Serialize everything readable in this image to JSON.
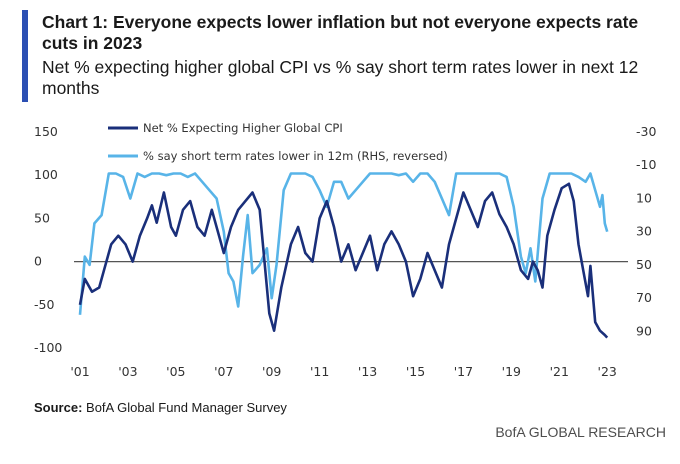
{
  "header": {
    "title": "Chart 1: Everyone expects lower inflation but not everyone expects rate cuts in 2023",
    "subtitle": "Net % expecting higher global CPI vs % say short term rates lower in next 12 months"
  },
  "footer": {
    "source_label": "Source:",
    "source_text": "BofA Global Fund Manager Survey",
    "brand": "BofA GLOBAL RESEARCH"
  },
  "colors": {
    "accent": "#2b4fb3",
    "series_dark": "#1a2f7a",
    "series_light": "#58b4e8",
    "zero_line": "#555555"
  },
  "chart_data": {
    "type": "line",
    "xlabel": "",
    "ylabel": "",
    "ylabel_right": "",
    "x_ticks": [
      "'01",
      "'03",
      "'05",
      "'07",
      "'09",
      "'11",
      "'13",
      "'15",
      "'17",
      "'19",
      "'21",
      "'23"
    ],
    "y_ticks_left": [
      150,
      100,
      50,
      0,
      -50,
      -100
    ],
    "y_ticks_right": [
      -30,
      -10,
      10,
      30,
      50,
      70,
      90
    ],
    "ylim_left": [
      -100,
      150
    ],
    "ylim_right_reversed": [
      -30,
      100
    ],
    "x_range": [
      2001.0,
      2023.2
    ],
    "legend_position": "top",
    "series": [
      {
        "name": "Net % Expecting Higher Global CPI",
        "axis": "left",
        "points": [
          [
            2001.0,
            -50
          ],
          [
            2001.2,
            -20
          ],
          [
            2001.5,
            -35
          ],
          [
            2001.8,
            -30
          ],
          [
            2002.0,
            -10
          ],
          [
            2002.3,
            20
          ],
          [
            2002.6,
            30
          ],
          [
            2002.9,
            20
          ],
          [
            2003.2,
            0
          ],
          [
            2003.5,
            30
          ],
          [
            2003.8,
            50
          ],
          [
            2004.0,
            65
          ],
          [
            2004.2,
            45
          ],
          [
            2004.5,
            80
          ],
          [
            2004.8,
            40
          ],
          [
            2005.0,
            30
          ],
          [
            2005.3,
            60
          ],
          [
            2005.6,
            70
          ],
          [
            2005.9,
            40
          ],
          [
            2006.2,
            30
          ],
          [
            2006.5,
            60
          ],
          [
            2006.8,
            30
          ],
          [
            2007.0,
            10
          ],
          [
            2007.3,
            40
          ],
          [
            2007.6,
            60
          ],
          [
            2007.9,
            70
          ],
          [
            2008.2,
            80
          ],
          [
            2008.5,
            60
          ],
          [
            2008.7,
            0
          ],
          [
            2008.9,
            -60
          ],
          [
            2009.1,
            -80
          ],
          [
            2009.4,
            -30
          ],
          [
            2009.8,
            20
          ],
          [
            2010.1,
            40
          ],
          [
            2010.4,
            10
          ],
          [
            2010.7,
            0
          ],
          [
            2011.0,
            50
          ],
          [
            2011.3,
            70
          ],
          [
            2011.6,
            40
          ],
          [
            2011.9,
            0
          ],
          [
            2012.2,
            20
          ],
          [
            2012.5,
            -10
          ],
          [
            2012.8,
            10
          ],
          [
            2013.1,
            30
          ],
          [
            2013.4,
            -10
          ],
          [
            2013.7,
            20
          ],
          [
            2014.0,
            35
          ],
          [
            2014.3,
            20
          ],
          [
            2014.6,
            0
          ],
          [
            2014.9,
            -40
          ],
          [
            2015.2,
            -20
          ],
          [
            2015.5,
            10
          ],
          [
            2015.8,
            -10
          ],
          [
            2016.1,
            -30
          ],
          [
            2016.4,
            20
          ],
          [
            2016.7,
            50
          ],
          [
            2017.0,
            80
          ],
          [
            2017.3,
            60
          ],
          [
            2017.6,
            40
          ],
          [
            2017.9,
            70
          ],
          [
            2018.2,
            80
          ],
          [
            2018.5,
            55
          ],
          [
            2018.8,
            40
          ],
          [
            2019.1,
            20
          ],
          [
            2019.4,
            -10
          ],
          [
            2019.7,
            -20
          ],
          [
            2019.9,
            0
          ],
          [
            2020.1,
            -10
          ],
          [
            2020.3,
            -30
          ],
          [
            2020.5,
            30
          ],
          [
            2020.8,
            60
          ],
          [
            2021.1,
            85
          ],
          [
            2021.4,
            90
          ],
          [
            2021.6,
            70
          ],
          [
            2021.8,
            20
          ],
          [
            2022.0,
            -10
          ],
          [
            2022.2,
            -40
          ],
          [
            2022.3,
            -5
          ],
          [
            2022.5,
            -70
          ],
          [
            2022.7,
            -80
          ],
          [
            2022.9,
            -85
          ],
          [
            2023.0,
            -88
          ]
        ]
      },
      {
        "name": "% say short term rates lower in 12m (RHS, reversed)",
        "axis": "right",
        "points": [
          [
            2001.0,
            80
          ],
          [
            2001.2,
            45
          ],
          [
            2001.4,
            50
          ],
          [
            2001.6,
            25
          ],
          [
            2001.9,
            20
          ],
          [
            2002.2,
            -5
          ],
          [
            2002.5,
            -5
          ],
          [
            2002.8,
            -3
          ],
          [
            2003.1,
            10
          ],
          [
            2003.4,
            -5
          ],
          [
            2003.7,
            -3
          ],
          [
            2004.0,
            -5
          ],
          [
            2004.3,
            -5
          ],
          [
            2004.6,
            -4
          ],
          [
            2004.9,
            -5
          ],
          [
            2005.2,
            -5
          ],
          [
            2005.5,
            -3
          ],
          [
            2005.8,
            -5
          ],
          [
            2006.1,
            0
          ],
          [
            2006.4,
            5
          ],
          [
            2006.7,
            10
          ],
          [
            2007.0,
            30
          ],
          [
            2007.2,
            55
          ],
          [
            2007.4,
            60
          ],
          [
            2007.6,
            75
          ],
          [
            2007.8,
            45
          ],
          [
            2008.0,
            20
          ],
          [
            2008.2,
            55
          ],
          [
            2008.5,
            50
          ],
          [
            2008.8,
            40
          ],
          [
            2009.0,
            70
          ],
          [
            2009.2,
            50
          ],
          [
            2009.5,
            5
          ],
          [
            2009.8,
            -5
          ],
          [
            2010.1,
            -5
          ],
          [
            2010.4,
            -5
          ],
          [
            2010.7,
            -3
          ],
          [
            2011.0,
            5
          ],
          [
            2011.3,
            15
          ],
          [
            2011.6,
            0
          ],
          [
            2011.9,
            0
          ],
          [
            2012.2,
            10
          ],
          [
            2012.5,
            5
          ],
          [
            2012.8,
            0
          ],
          [
            2013.1,
            -5
          ],
          [
            2013.4,
            -5
          ],
          [
            2013.7,
            -5
          ],
          [
            2014.0,
            -5
          ],
          [
            2014.3,
            -4
          ],
          [
            2014.6,
            -5
          ],
          [
            2014.9,
            0
          ],
          [
            2015.2,
            -5
          ],
          [
            2015.5,
            -5
          ],
          [
            2015.8,
            0
          ],
          [
            2016.1,
            10
          ],
          [
            2016.4,
            20
          ],
          [
            2016.7,
            -5
          ],
          [
            2017.0,
            -5
          ],
          [
            2017.3,
            -5
          ],
          [
            2017.6,
            -5
          ],
          [
            2017.9,
            -5
          ],
          [
            2018.2,
            -5
          ],
          [
            2018.5,
            -5
          ],
          [
            2018.8,
            -3
          ],
          [
            2019.1,
            15
          ],
          [
            2019.4,
            45
          ],
          [
            2019.6,
            55
          ],
          [
            2019.8,
            40
          ],
          [
            2020.0,
            60
          ],
          [
            2020.3,
            10
          ],
          [
            2020.6,
            -5
          ],
          [
            2020.9,
            -5
          ],
          [
            2021.2,
            -5
          ],
          [
            2021.5,
            -5
          ],
          [
            2021.8,
            -3
          ],
          [
            2022.1,
            0
          ],
          [
            2022.3,
            -5
          ],
          [
            2022.5,
            5
          ],
          [
            2022.7,
            15
          ],
          [
            2022.8,
            8
          ],
          [
            2022.9,
            25
          ],
          [
            2023.0,
            30
          ]
        ]
      }
    ]
  }
}
